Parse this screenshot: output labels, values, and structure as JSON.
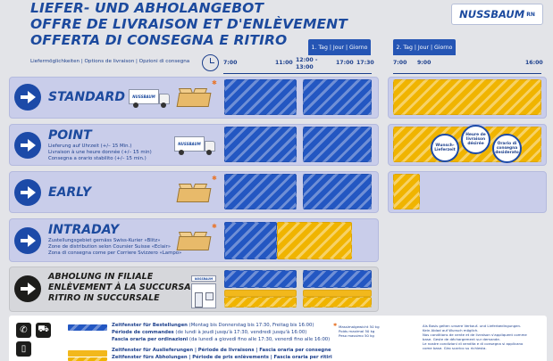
{
  "header": {
    "title_de": "LIEFER- UND ABHOLANGEBOT",
    "title_fr": "OFFRE DE LIVRAISON ET D'ENLÈVEMENT",
    "title_it": "OFFERTA DI CONSEGNA E RITIRO",
    "logo": "NUSSBAUM",
    "logo_suffix": "RN",
    "day1": "1. Tag | Jour | Giorno",
    "day2": "2. Tag | Jour | Giorno",
    "options_label": "Liefermöglichkeiten | Options de livraison | Opzioni di consegna"
  },
  "times": {
    "d1_t1": "7:00",
    "d1_t2": "11:00",
    "d1_t3a": "12:00 -",
    "d1_t3b": "13:00",
    "d1_t4": "17:00",
    "d1_t5": "17:30",
    "d2_t1": "7:00",
    "d2_t2": "9:00",
    "d2_t3": "16:00"
  },
  "rows": {
    "standard": {
      "name": "STANDARD",
      "truck_label": "NUSSBAUM"
    },
    "point": {
      "name": "POINT",
      "truck_label": "NUSSBAUM",
      "desc1": "Lieferung auf Uhrzeit (+/– 15 Min.)",
      "desc2": "Livraison à une heure donnée (+/– 15 min)",
      "desc3": "Consegna a orario stabilito (+/– 15 min.)",
      "bubble1": "Wunsch-Lieferzeit",
      "bubble2": "Heure de livraison désirée",
      "bubble3": "Orario di consegna desiderato"
    },
    "early": {
      "name": "EARLY"
    },
    "intraday": {
      "name": "INTRADAY",
      "desc1": "Zustellungsgebiet gemäss Swiss-Kurier «Blitz»",
      "desc2": "Zone de distribution selon Coursier Suisse «Eclair»",
      "desc3": "Zona di consegna come per Corriere Svizzero «Lampo»"
    },
    "pickup": {
      "line1": "ABHOLUNG IN FILIALE",
      "line2": "ENLÈVEMENT À LA SUCCURSALE",
      "line3": "RITIRO IN SUCCURSALE",
      "shop_label": "NUSSBAUM"
    }
  },
  "legend": {
    "order_bold": "Zeitfenster für Bestellungen",
    "order_rest": " (Montag bis Donnerstag bis 17:30, Freitag bis 16:00)",
    "order_fr_bold": "Période de commandes",
    "order_fr_rest": " (de lundi à jeudi jusqu'à 17:30, vendredi jusqu'à 16:00)",
    "order_it_bold": "Fascia oraria per ordinazioni",
    "order_it_rest": " (da lunedì a giovedì fino alle 17:30, venerdì fino alle 16:00)",
    "delivery_bold": "Zeitfenster für Auslieferungen | Période de livraisons | Fascia oraria per consegne",
    "pickup_bold": "Zeitfenster fürs Abholungen | Période de pris enlèvements | Fascia oraria per ritiri",
    "note_a1": "Massimalgewicht 50 kg",
    "note_a2": "Poids maximal 50 kg",
    "note_a3": "Peso massimo 50 kg",
    "note_b1": "Als Basis gelten unsere Verkauf- und Lieferbedingungen.",
    "note_b2": "Kein Ablad auf Wunsch möglich.",
    "note_b3": "Nos conditions de vente et de livraison s'appliquent comme",
    "note_b4": "base. Geste de déchargement sur demande.",
    "note_b5": "Le nostre condizioni di vendita e di consegna si applicano",
    "note_b6": "come base. Giro scarico su richiesta."
  },
  "colors": {
    "brand_blue": "#1c4a9e",
    "order_stripe": "#2357c2",
    "delivery_stripe": "#f0b400",
    "row_bg": "#c9cdea"
  }
}
